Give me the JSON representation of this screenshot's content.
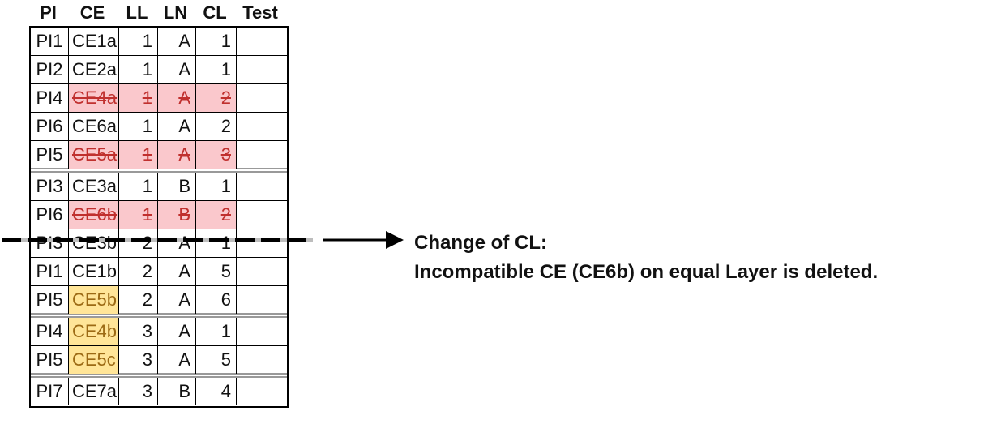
{
  "table": {
    "headers": [
      "PI",
      "CE",
      "LL",
      "LN",
      "CL",
      "Test"
    ],
    "rows": [
      {
        "pi": "PI1",
        "ce": "CE1a",
        "ll": "1",
        "ln": "A",
        "cl": "1",
        "test": "",
        "deleted": false,
        "highlight": false
      },
      {
        "pi": "PI2",
        "ce": "CE2a",
        "ll": "1",
        "ln": "A",
        "cl": "1",
        "test": "",
        "deleted": false,
        "highlight": false
      },
      {
        "pi": "PI4",
        "ce": "CE4a",
        "ll": "1",
        "ln": "A",
        "cl": "2",
        "test": "",
        "deleted": true,
        "highlight": false
      },
      {
        "pi": "PI6",
        "ce": "CE6a",
        "ll": "1",
        "ln": "A",
        "cl": "2",
        "test": "",
        "deleted": false,
        "highlight": false
      },
      {
        "pi": "PI5",
        "ce": "CE5a",
        "ll": "1",
        "ln": "A",
        "cl": "3",
        "test": "",
        "deleted": true,
        "highlight": false,
        "group_end": true
      },
      {
        "pi": "PI3",
        "ce": "CE3a",
        "ll": "1",
        "ln": "B",
        "cl": "1",
        "test": "",
        "deleted": false,
        "highlight": false
      },
      {
        "pi": "PI6",
        "ce": "CE6b",
        "ll": "1",
        "ln": "B",
        "cl": "2",
        "test": "",
        "deleted": true,
        "highlight": false
      },
      {
        "pi": "PI3",
        "ce": "CE3b",
        "ll": "2",
        "ln": "A",
        "cl": "1",
        "test": "",
        "deleted": false,
        "highlight": false
      },
      {
        "pi": "PI1",
        "ce": "CE1b",
        "ll": "2",
        "ln": "A",
        "cl": "5",
        "test": "",
        "deleted": false,
        "highlight": false
      },
      {
        "pi": "PI5",
        "ce": "CE5b",
        "ll": "2",
        "ln": "A",
        "cl": "6",
        "test": "",
        "deleted": false,
        "highlight": true,
        "group_end": true
      },
      {
        "pi": "PI4",
        "ce": "CE4b",
        "ll": "3",
        "ln": "A",
        "cl": "1",
        "test": "",
        "deleted": false,
        "highlight": true
      },
      {
        "pi": "PI5",
        "ce": "CE5c",
        "ll": "3",
        "ln": "A",
        "cl": "5",
        "test": "",
        "deleted": false,
        "highlight": true,
        "group_end": true
      },
      {
        "pi": "PI7",
        "ce": "CE7a",
        "ll": "3",
        "ln": "B",
        "cl": "4",
        "test": "",
        "deleted": false,
        "highlight": false
      }
    ]
  },
  "colors": {
    "deleted_fill": "#fac8cc",
    "deleted_text": "#c0302e",
    "highlight_fill": "#ffe598",
    "highlight_text": "#9c6a14"
  },
  "annotation": {
    "line1": "Change of CL:",
    "line2": "Incompatible CE (CE6b) on equal Layer is deleted."
  },
  "icons": {
    "arrow": "arrow-right-icon"
  }
}
